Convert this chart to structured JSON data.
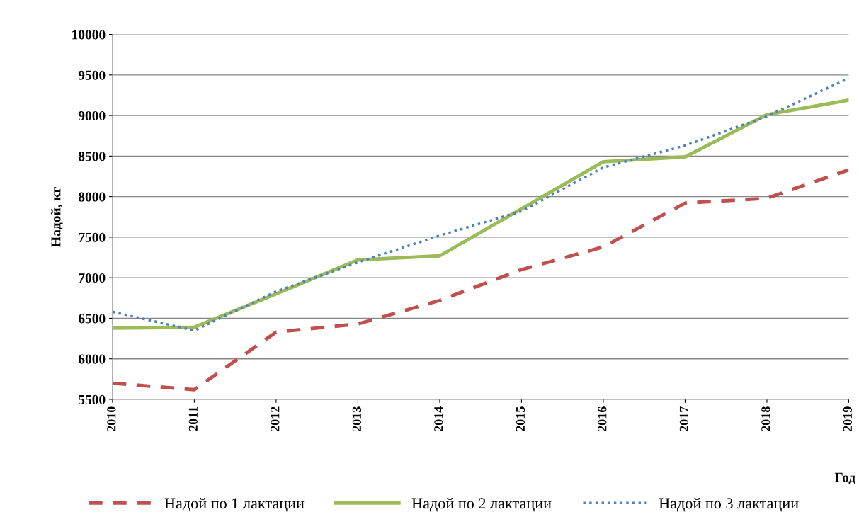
{
  "chart_data": {
    "type": "line",
    "xlabel": "Год",
    "ylabel": "Надой, кг",
    "x": [
      2010,
      2011,
      2012,
      2013,
      2014,
      2015,
      2016,
      2017,
      2018,
      2019
    ],
    "xlim": [
      2010,
      2019
    ],
    "xticks": [
      2010,
      2011,
      2012,
      2013,
      2014,
      2015,
      2016,
      2017,
      2018,
      2019
    ],
    "ylim": [
      5500,
      10000
    ],
    "yticks": [
      5500,
      6000,
      6500,
      7000,
      7500,
      8000,
      8500,
      9000,
      9500,
      10000
    ],
    "grid": "y",
    "legend": "bottom",
    "marker": "none",
    "series": [
      {
        "name": "Надой по 1 лактации",
        "color": "#c0504d",
        "line_style": "dashed",
        "values": [
          5700,
          5620,
          6330,
          6430,
          6720,
          7100,
          7380,
          7920,
          7980,
          8330
        ]
      },
      {
        "name": "Надой по 2 лактации",
        "color": "#9bbb59",
        "line_style": "solid",
        "values": [
          6380,
          6390,
          6800,
          7220,
          7270,
          7850,
          8430,
          8490,
          9010,
          9190
        ]
      },
      {
        "name": "Надой по 3 лактации",
        "color": "#4f81bd",
        "line_style": "dotted",
        "values": [
          6580,
          6350,
          6830,
          7190,
          7520,
          7820,
          8360,
          8630,
          8990,
          9460
        ]
      }
    ]
  }
}
